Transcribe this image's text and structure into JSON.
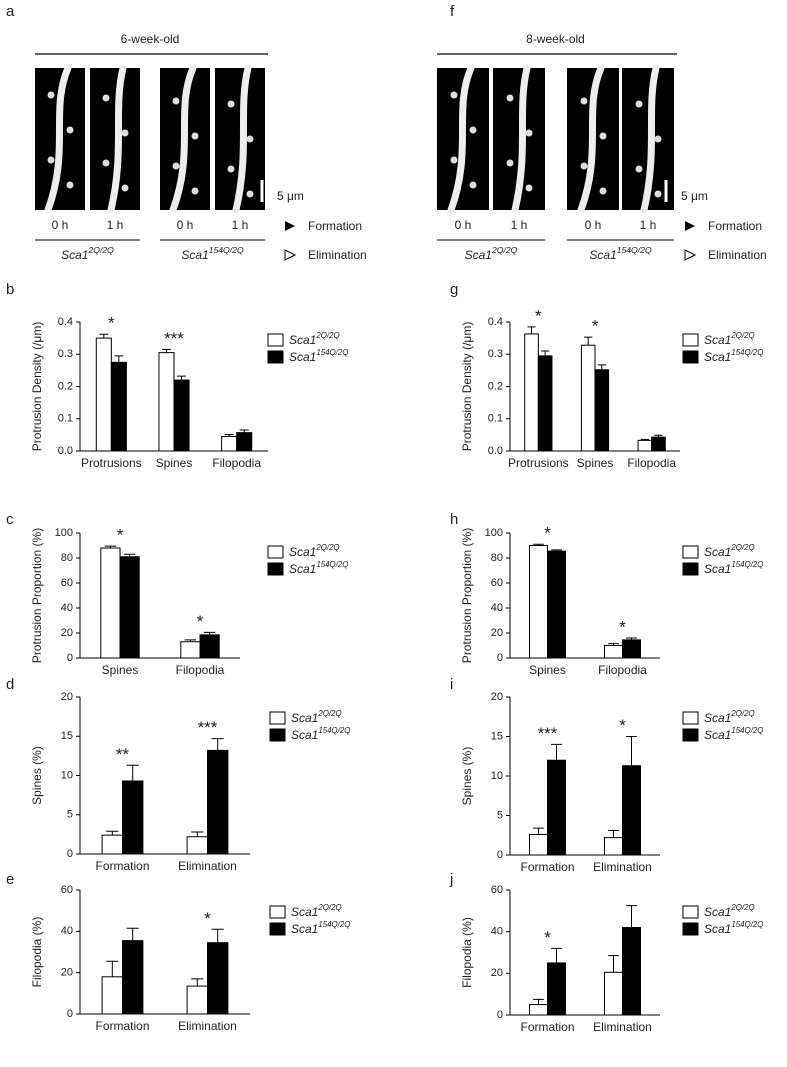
{
  "image_figures": [
    {
      "panel": "a",
      "title": "6-week-old",
      "times": [
        "0 h",
        "1 h",
        "0 h",
        "1 h"
      ],
      "genotypes": [
        {
          "name": "Sca1",
          "genotype": "2Q/2Q"
        },
        {
          "name": "Sca1",
          "genotype": "154Q/2Q"
        }
      ],
      "scale": "5 μm",
      "legend": [
        "Formation",
        "Elimination"
      ]
    },
    {
      "panel": "f",
      "title": "8-week-old",
      "times": [
        "0 h",
        "1 h",
        "0 h",
        "1 h"
      ],
      "genotypes": [
        {
          "name": "Sca1",
          "genotype": "2Q/2Q"
        },
        {
          "name": "Sca1",
          "genotype": "154Q/2Q"
        }
      ],
      "scale": "5 μm",
      "legend": [
        "Formation",
        "Elimination"
      ]
    }
  ],
  "chart_data": [
    {
      "type": "bar",
      "panel": "b",
      "ylabel": "Protrusion Density (/μm)",
      "categories": [
        "Protrusions",
        "Spines",
        "Filopodia"
      ],
      "ylim": [
        0,
        0.4
      ],
      "yticks": [
        {
          "value": 0,
          "label": "0.0"
        },
        0.1,
        0.2,
        0.3,
        0.4
      ],
      "stars": [
        "*",
        "***",
        null
      ],
      "series": [
        {
          "name": "Sca1",
          "genotype": "2Q/2Q",
          "color": "#ffffff",
          "values": [
            0.35,
            0.305,
            0.045
          ],
          "errors": [
            0.012,
            0.01,
            0.006
          ]
        },
        {
          "name": "Sca1",
          "genotype": "154Q/2Q",
          "color": "#000000",
          "values": [
            0.275,
            0.22,
            0.057
          ],
          "errors": [
            0.02,
            0.012,
            0.008
          ]
        }
      ]
    },
    {
      "type": "bar",
      "panel": "c",
      "ylabel": "Protrusion Proportion (%)",
      "categories": [
        "Spines",
        "Filopodia"
      ],
      "ylim": [
        0,
        100
      ],
      "yticks": [
        0,
        20,
        40,
        60,
        80,
        100
      ],
      "stars": [
        "*",
        "*"
      ],
      "series": [
        {
          "name": "Sca1",
          "genotype": "2Q/2Q",
          "color": "#ffffff",
          "values": [
            88,
            13
          ],
          "errors": [
            1.5,
            1.5
          ]
        },
        {
          "name": "Sca1",
          "genotype": "154Q/2Q",
          "color": "#000000",
          "values": [
            81,
            18.5
          ],
          "errors": [
            2,
            2
          ]
        }
      ]
    },
    {
      "type": "bar",
      "panel": "d",
      "ylabel": "Spines (%)",
      "categories": [
        "Formation",
        "Elimination"
      ],
      "ylim": [
        0,
        20
      ],
      "yticks": [
        0,
        5,
        10,
        15,
        20
      ],
      "stars": [
        "**",
        "***"
      ],
      "series": [
        {
          "name": "Sca1",
          "genotype": "2Q/2Q",
          "color": "#ffffff",
          "values": [
            2.4,
            2.2
          ],
          "errors": [
            0.5,
            0.6
          ]
        },
        {
          "name": "Sca1",
          "genotype": "154Q/2Q",
          "color": "#000000",
          "values": [
            9.3,
            13.2
          ],
          "errors": [
            2,
            1.5
          ]
        }
      ]
    },
    {
      "type": "bar",
      "panel": "e",
      "ylabel": "Filopodia (%)",
      "categories": [
        "Formation",
        "Elimination"
      ],
      "ylim": [
        0,
        60
      ],
      "yticks": [
        0,
        20,
        40,
        60
      ],
      "stars": [
        null,
        "*"
      ],
      "series": [
        {
          "name": "Sca1",
          "genotype": "2Q/2Q",
          "color": "#ffffff",
          "values": [
            18,
            13.5
          ],
          "errors": [
            7.5,
            3.5
          ]
        },
        {
          "name": "Sca1",
          "genotype": "154Q/2Q",
          "color": "#000000",
          "values": [
            35.5,
            34.5
          ],
          "errors": [
            6,
            6.5
          ]
        }
      ]
    },
    {
      "type": "bar",
      "panel": "g",
      "ylabel": "Protrusion Density (/μm)",
      "categories": [
        "Protrusions",
        "Spines",
        "Filopodia"
      ],
      "ylim": [
        0,
        0.4
      ],
      "yticks": [
        {
          "value": 0,
          "label": "0.0"
        },
        0.1,
        0.2,
        0.3,
        0.4
      ],
      "stars": [
        "*",
        "*",
        null
      ],
      "series": [
        {
          "name": "Sca1",
          "genotype": "2Q/2Q",
          "color": "#ffffff",
          "values": [
            0.363,
            0.328,
            0.033
          ],
          "errors": [
            0.022,
            0.025,
            0.003
          ]
        },
        {
          "name": "Sca1",
          "genotype": "154Q/2Q",
          "color": "#000000",
          "values": [
            0.295,
            0.252,
            0.043
          ],
          "errors": [
            0.015,
            0.015,
            0.006
          ]
        }
      ]
    },
    {
      "type": "bar",
      "panel": "h",
      "ylabel": "Protrusion Proportion (%)",
      "categories": [
        "Spines",
        "Filopodia"
      ],
      "ylim": [
        0,
        100
      ],
      "yticks": [
        0,
        20,
        40,
        60,
        80,
        100
      ],
      "stars": [
        "*",
        "*"
      ],
      "series": [
        {
          "name": "Sca1",
          "genotype": "2Q/2Q",
          "color": "#ffffff",
          "values": [
            90,
            10
          ],
          "errors": [
            1,
            1.5
          ]
        },
        {
          "name": "Sca1",
          "genotype": "154Q/2Q",
          "color": "#000000",
          "values": [
            85.5,
            14.5
          ],
          "errors": [
            1,
            1.5
          ]
        }
      ]
    },
    {
      "type": "bar",
      "panel": "i",
      "ylabel": "Spines (%)",
      "categories": [
        "Formation",
        "Elimination"
      ],
      "ylim": [
        0,
        20
      ],
      "yticks": [
        0,
        5,
        10,
        15,
        20
      ],
      "stars": [
        "***",
        "*"
      ],
      "series": [
        {
          "name": "Sca1",
          "genotype": "2Q/2Q",
          "color": "#ffffff",
          "values": [
            2.6,
            2.2
          ],
          "errors": [
            0.8,
            0.9
          ]
        },
        {
          "name": "Sca1",
          "genotype": "154Q/2Q",
          "color": "#000000",
          "values": [
            12,
            11.3
          ],
          "errors": [
            2,
            3.7
          ]
        }
      ]
    },
    {
      "type": "bar",
      "panel": "j",
      "ylabel": "Filopodia (%)",
      "categories": [
        "Formation",
        "Elimination"
      ],
      "ylim": [
        0,
        60
      ],
      "yticks": [
        0,
        20,
        40,
        60
      ],
      "stars": [
        "*",
        null
      ],
      "series": [
        {
          "name": "Sca1",
          "genotype": "2Q/2Q",
          "color": "#ffffff",
          "values": [
            5,
            20.5
          ],
          "errors": [
            2.5,
            8
          ]
        },
        {
          "name": "Sca1",
          "genotype": "154Q/2Q",
          "color": "#000000",
          "values": [
            25,
            42
          ],
          "errors": [
            7,
            10.5
          ]
        }
      ]
    }
  ]
}
